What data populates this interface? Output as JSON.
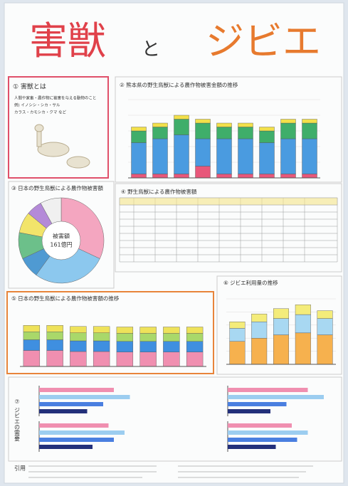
{
  "title_parts": [
    "害獣",
    "と",
    "ジビエ"
  ],
  "intro": {
    "heading": "① 害獣とは",
    "lines": [
      "人間や家畜・農作物に被害を与える動物のこと",
      "例) イノシシ・シカ・サル",
      "カラス・カモシカ・クマ など"
    ]
  },
  "table": {
    "title": "④ 野生鳥獣による農作物被害額"
  },
  "charts": [
    {
      "type": "bar",
      "stacked": true,
      "title": "② 熊本県の野生鳥獣による農作物被害金額の推移",
      "ylim": [
        0,
        100
      ],
      "grid": true,
      "series": [
        {
          "color": "#e8577a",
          "values": [
            5,
            5,
            5,
            15,
            5,
            5,
            5,
            5,
            5
          ]
        },
        {
          "color": "#4a9be0",
          "values": [
            40,
            45,
            50,
            35,
            45,
            45,
            40,
            45,
            45
          ]
        },
        {
          "color": "#3fae6a",
          "values": [
            15,
            15,
            20,
            20,
            15,
            15,
            15,
            20,
            20
          ]
        },
        {
          "color": "#f2e04a",
          "values": [
            5,
            5,
            5,
            5,
            5,
            5,
            5,
            5,
            5
          ]
        }
      ]
    },
    {
      "type": "pie",
      "title": "③ 日本の野生鳥獣による農作物被害額",
      "center": [
        "被害額",
        "161億円"
      ],
      "values": [
        32,
        28,
        8,
        10,
        8,
        6,
        8
      ],
      "colors": [
        "#f4a6c0",
        "#8cc8ee",
        "#4f9ad2",
        "#6cc08a",
        "#f2e46a",
        "#b48ad8",
        "#f0f0f0"
      ]
    },
    {
      "type": "bar",
      "stacked": true,
      "title": "⑤ 日本の野生鳥獣による農作物被害額の推移",
      "ylim": [
        0,
        100
      ],
      "grid": false,
      "series": [
        {
          "color": "#f08fb0",
          "values": [
            30,
            30,
            28,
            28,
            27,
            27,
            27,
            27
          ]
        },
        {
          "color": "#3f8fe0",
          "values": [
            20,
            20,
            20,
            20,
            20,
            20,
            20,
            20
          ]
        },
        {
          "color": "#a9d86a",
          "values": [
            15,
            15,
            15,
            15,
            15,
            15,
            15,
            15
          ]
        },
        {
          "color": "#eee25a",
          "values": [
            12,
            12,
            12,
            12,
            12,
            12,
            12,
            12
          ]
        }
      ]
    },
    {
      "type": "bar",
      "stacked": true,
      "title": "⑥ ジビエ利用量の推移",
      "ylim": [
        0,
        100
      ],
      "grid": true,
      "series": [
        {
          "color": "#f6b14e",
          "values": [
            35,
            40,
            45,
            48,
            45
          ]
        },
        {
          "color": "#a8d8f2",
          "values": [
            20,
            25,
            25,
            28,
            25
          ]
        },
        {
          "color": "#f4ec7a",
          "values": [
            10,
            12,
            15,
            15,
            12
          ]
        }
      ]
    },
    {
      "type": "hbar",
      "title": "⑦ ジビエの需要",
      "xlim": [
        0,
        100
      ],
      "colors": [
        "#f08fb0",
        "#9ccdf0",
        "#4a7fe0",
        "#23307a"
      ],
      "groups": [
        {
          "values": [
            70,
            85,
            60,
            45
          ]
        },
        {
          "values": [
            75,
            90,
            55,
            40
          ]
        },
        {
          "values": [
            65,
            80,
            70,
            50
          ]
        },
        {
          "values": [
            60,
            75,
            65,
            45
          ]
        }
      ]
    }
  ],
  "references": {
    "label": "引用"
  }
}
